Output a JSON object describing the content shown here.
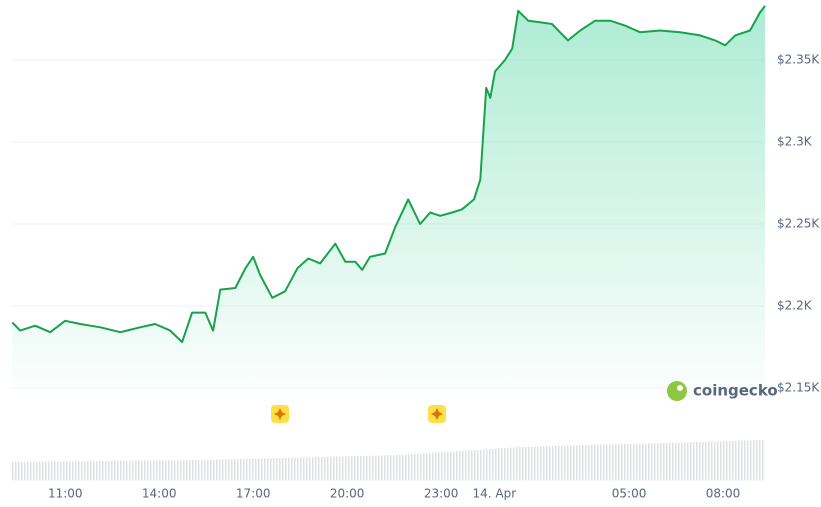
{
  "chart_data": {
    "type": "line",
    "brand": "coingecko",
    "x": [
      9.31,
      9.56,
      10.04,
      10.52,
      11,
      11.48,
      12.12,
      12.76,
      13.39,
      13.87,
      14.35,
      14.73,
      15.05,
      15.47,
      15.72,
      15.95,
      16.43,
      16.75,
      17.0,
      17.22,
      17.61,
      18.02,
      18.41,
      18.76,
      19.14,
      19.62,
      19.94,
      20.26,
      20.48,
      20.73,
      21.21,
      21.53,
      21.95,
      22.33,
      22.65,
      22.97,
      23.35,
      23.67,
      24.05,
      24.25,
      24.44,
      24.57,
      24.72,
      25.04,
      25.27,
      25.46,
      25.78,
      26.16,
      26.54,
      27.05,
      27.44,
      27.92,
      28.4,
      28.87,
      29.35,
      29.99,
      30.63,
      31.27,
      31.75,
      32.07,
      32.39,
      32.86,
      33.18,
      33.34
    ],
    "series": [
      {
        "color": "#16a34a",
        "values": [
          2190,
          2185,
          2188,
          2184,
          2191,
          2189,
          2187,
          2184,
          2187,
          2189,
          2185,
          2178,
          2196,
          2196,
          2185,
          2210,
          2211,
          2223,
          2230,
          2219,
          2205,
          2209,
          2223,
          2229,
          2226,
          2238,
          2227,
          2227,
          2222,
          2230,
          2232,
          2248,
          2265,
          2250,
          2257,
          2255,
          2257,
          2259,
          2265,
          2277,
          2333,
          2327,
          2343,
          2350,
          2357,
          2380,
          2374,
          2373,
          2372,
          2362,
          2368,
          2374,
          2374,
          2371,
          2367,
          2368,
          2367,
          2365,
          2362,
          2359,
          2365,
          2368,
          2379,
          2383
        ]
      }
    ],
    "xlim": [
      9.3,
      33.34
    ],
    "xticks": [
      {
        "value": 11,
        "label": "11:00"
      },
      {
        "value": 14,
        "label": "14:00"
      },
      {
        "value": 17,
        "label": "17:00"
      },
      {
        "value": 20,
        "label": "20:00"
      },
      {
        "value": 23,
        "label": "23:00"
      },
      {
        "value": 24.7,
        "label": "14. Apr"
      },
      {
        "value": 29,
        "label": "05:00"
      },
      {
        "value": 32,
        "label": "08:00"
      }
    ],
    "ylim": [
      2150,
      2386
    ],
    "yticks": [
      {
        "value": 2150,
        "label": "$2.15K"
      },
      {
        "value": 2200,
        "label": "$2.2K"
      },
      {
        "value": 2250,
        "label": "$2.25K"
      },
      {
        "value": 2300,
        "label": "$2.3K"
      },
      {
        "value": 2350,
        "label": "$2.35K"
      }
    ],
    "grid": true
  }
}
